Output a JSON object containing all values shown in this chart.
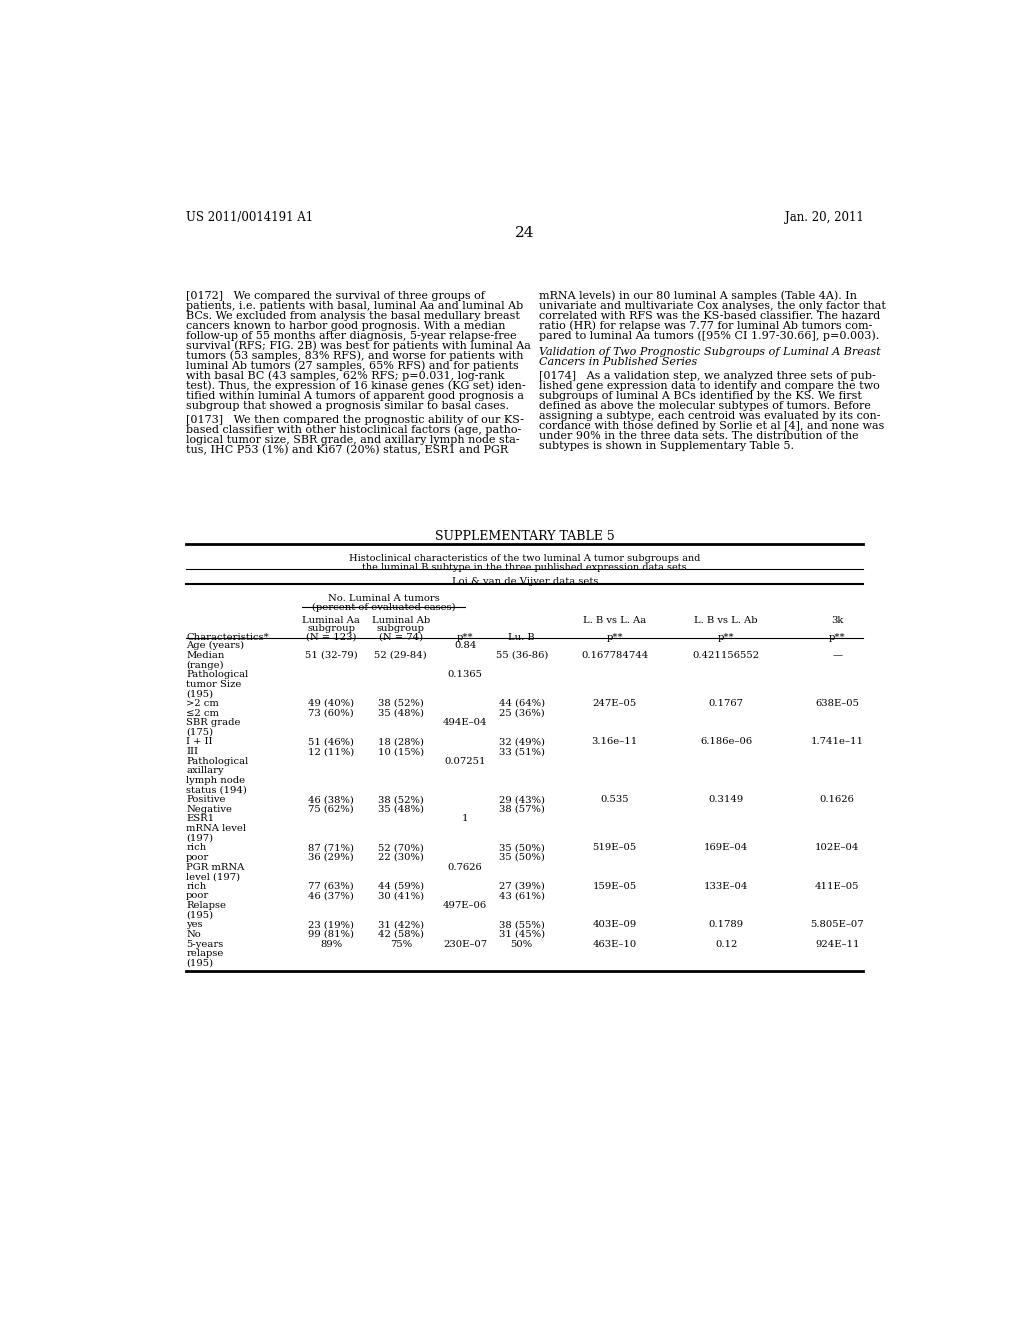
{
  "background_color": "#ffffff",
  "header_left": "US 2011/0014191 A1",
  "header_right": "Jan. 20, 2011",
  "page_number": "24",
  "col_group1": "Loi & van de Vijver data sets",
  "col_subgroup": "No. Luminal A tumors",
  "col_subgroup2": "(percent of evaluated cases)",
  "table_title": "SUPPLEMENTARY TABLE 5",
  "table_subtitle1": "Histoclinical characteristics of the two luminal A tumor subgroups and",
  "table_subtitle2": "the luminal B subtype in the three published expression data sets",
  "lines_172": [
    "[0172]   We compared the survival of three groups of",
    "patients, i.e. patients with basal, luminal Aa and luminal Ab",
    "BCs. We excluded from analysis the basal medullary breast",
    "cancers known to harbor good prognosis. With a median",
    "follow-up of 55 months after diagnosis, 5-year relapse-free",
    "survival (RFS; FIG. 2B) was best for patients with luminal Aa",
    "tumors (53 samples, 83% RFS), and worse for patients with",
    "luminal Ab tumors (27 samples, 65% RFS) and for patients",
    "with basal BC (43 samples, 62% RFS; p=0.031, log-rank",
    "test). Thus, the expression of 16 kinase genes (KG set) iden-",
    "tified within luminal A tumors of apparent good prognosis a",
    "subgroup that showed a prognosis similar to basal cases."
  ],
  "lines_173": [
    "[0173]   We then compared the prognostic ability of our KS-",
    "based classifier with other histoclinical factors (age, patho-",
    "logical tumor size, SBR grade, and axillary lymph node sta-",
    "tus, IHC P53 (1%) and Ki67 (20%) status, ESR1 and PGR"
  ],
  "lines_right1": [
    "mRNA levels) in our 80 luminal A samples (Table 4A). In",
    "univariate and multivariate Cox analyses, the only factor that",
    "correlated with RFS was the KS-based classifier. The hazard",
    "ratio (HR) for relapse was 7.77 for luminal Ab tumors com-",
    "pared to luminal Aa tumors ([95% CI 1.97-30.66], p=0.003)."
  ],
  "val_title1": "Validation of Two Prognostic Subgroups of Luminal A Breast",
  "val_title2": "Cancers in Published Series",
  "lines_174": [
    "[0174]   As a validation step, we analyzed three sets of pub-",
    "lished gene expression data to identify and compare the two",
    "subgroups of luminal A BCs identified by the KS. We first",
    "defined as above the molecular subtypes of tumors. Before",
    "assigning a subtype, each centroid was evaluated by its con-",
    "cordance with those defined by Sorlie et al [4], and none was",
    "under 90% in the three data sets. The distribution of the",
    "subtypes is shown in Supplementary Table 5."
  ],
  "rows": [
    {
      "char": [
        "Age (years)"
      ],
      "laa": "",
      "lab": "",
      "pval": "0.84",
      "lub": [],
      "lvla": "",
      "lvlab": "",
      "k3": ""
    },
    {
      "char": [
        "Median",
        "(range)"
      ],
      "laa": "51 (32-79)",
      "lab": "52 (29-84)",
      "pval": "",
      "lub": [
        "55 (36-86)"
      ],
      "lvla": "0.167784744",
      "lvlab": "0.421156552",
      "k3": "—"
    },
    {
      "char": [
        "Pathological",
        "tumor Size",
        "(195)"
      ],
      "laa": "",
      "lab": "",
      "pval": "0.1365",
      "lub": [],
      "lvla": "",
      "lvlab": "",
      "k3": ""
    },
    {
      "char": [
        ">2 cm"
      ],
      "laa": "49 (40%)",
      "lab": "38 (52%)",
      "pval": "",
      "lub": [
        "44 (64%)"
      ],
      "lvla": "247E–05",
      "lvlab": "0.1767",
      "k3": "638E–05"
    },
    {
      "char": [
        "≤2 cm"
      ],
      "laa": "73 (60%)",
      "lab": "35 (48%)",
      "pval": "",
      "lub": [
        "25 (36%)"
      ],
      "lvla": "",
      "lvlab": "",
      "k3": ""
    },
    {
      "char": [
        "SBR grade",
        "(175)"
      ],
      "laa": "",
      "lab": "",
      "pval": "494E–04",
      "lub": [],
      "lvla": "",
      "lvlab": "",
      "k3": ""
    },
    {
      "char": [
        "I + II"
      ],
      "laa": "51 (46%)",
      "lab": "18 (28%)",
      "pval": "",
      "lub": [
        "32 (49%)"
      ],
      "lvla": "3.16e–11",
      "lvlab": "6.186e–06",
      "k3": "1.741e–11"
    },
    {
      "char": [
        "III"
      ],
      "laa": "12 (11%)",
      "lab": "10 (15%)",
      "pval": "",
      "lub": [
        "33 (51%)"
      ],
      "lvla": "",
      "lvlab": "",
      "k3": ""
    },
    {
      "char": [
        "Pathological",
        "axillary",
        "lymph node",
        "status (194)"
      ],
      "laa": "",
      "lab": "",
      "pval": "0.07251",
      "lub": [],
      "lvla": "",
      "lvlab": "",
      "k3": ""
    },
    {
      "char": [
        "Positive"
      ],
      "laa": "46 (38%)",
      "lab": "38 (52%)",
      "pval": "",
      "lub": [
        "29 (43%)"
      ],
      "lvla": "0.535",
      "lvlab": "0.3149",
      "k3": "0.1626"
    },
    {
      "char": [
        "Negative"
      ],
      "laa": "75 (62%)",
      "lab": "35 (48%)",
      "pval": "",
      "lub": [
        "38 (57%)"
      ],
      "lvla": "",
      "lvlab": "",
      "k3": ""
    },
    {
      "char": [
        "ESR1",
        "mRNA level",
        "(197)"
      ],
      "laa": "",
      "lab": "",
      "pval": "1",
      "lub": [],
      "lvla": "",
      "lvlab": "",
      "k3": ""
    },
    {
      "char": [
        "rich"
      ],
      "laa": "87 (71%)",
      "lab": "52 (70%)",
      "pval": "",
      "lub": [
        "35 (50%)"
      ],
      "lvla": "519E–05",
      "lvlab": "169E–04",
      "k3": "102E–04"
    },
    {
      "char": [
        "poor"
      ],
      "laa": "36 (29%)",
      "lab": "22 (30%)",
      "pval": "",
      "lub": [
        "35 (50%)"
      ],
      "lvla": "",
      "lvlab": "",
      "k3": ""
    },
    {
      "char": [
        "PGR mRNA",
        "level (197)"
      ],
      "laa": "",
      "lab": "",
      "pval": "0.7626",
      "lub": [],
      "lvla": "",
      "lvlab": "",
      "k3": ""
    },
    {
      "char": [
        "rich"
      ],
      "laa": "77 (63%)",
      "lab": "44 (59%)",
      "pval": "",
      "lub": [
        "27 (39%)"
      ],
      "lvla": "159E–05",
      "lvlab": "133E–04",
      "k3": "411E–05"
    },
    {
      "char": [
        "poor"
      ],
      "laa": "46 (37%)",
      "lab": "30 (41%)",
      "pval": "",
      "lub": [
        "43 (61%)"
      ],
      "lvla": "",
      "lvlab": "",
      "k3": ""
    },
    {
      "char": [
        "Relapse",
        "(195)"
      ],
      "laa": "",
      "lab": "",
      "pval": "497E–06",
      "lub": [],
      "lvla": "",
      "lvlab": "",
      "k3": ""
    },
    {
      "char": [
        "yes"
      ],
      "laa": "23 (19%)",
      "lab": "31 (42%)",
      "pval": "",
      "lub": [
        "38 (55%)"
      ],
      "lvla": "403E–09",
      "lvlab": "0.1789",
      "k3": "5.805E–07"
    },
    {
      "char": [
        "No"
      ],
      "laa": "99 (81%)",
      "lab": "42 (58%)",
      "pval": "",
      "lub": [
        "31 (45%)"
      ],
      "lvla": "",
      "lvlab": "",
      "k3": ""
    },
    {
      "char": [
        "5-years",
        "relapse",
        "(195)"
      ],
      "laa": "89%",
      "lab": "75%",
      "pval": "230E–07",
      "lub": [
        "50%"
      ],
      "lvla": "463E–10",
      "lvlab": "0.12",
      "k3": "924E–11"
    }
  ]
}
